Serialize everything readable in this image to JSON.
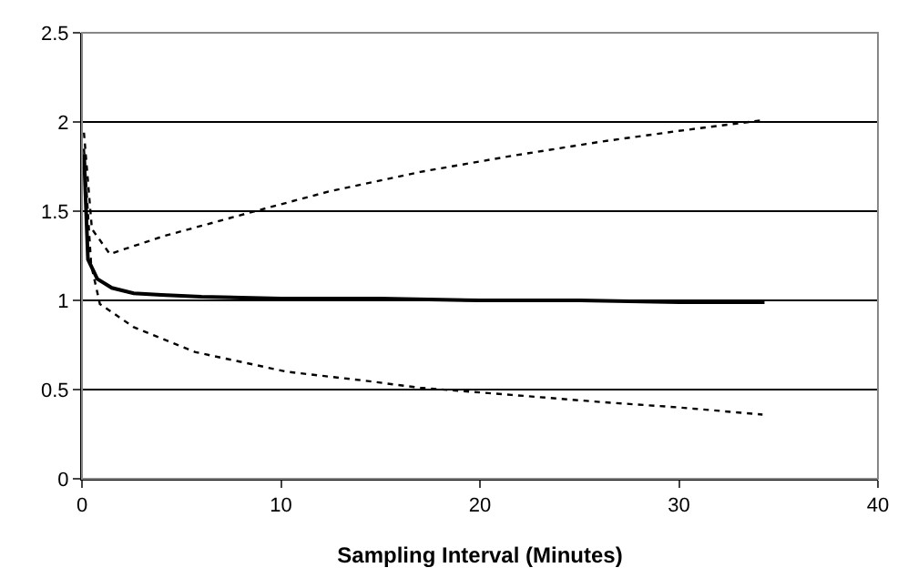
{
  "chart_data": {
    "type": "line",
    "xlabel": "Sampling Interval (Minutes)",
    "xlim": [
      0,
      40
    ],
    "xticks": [
      0,
      10,
      20,
      30,
      40
    ],
    "ylim": [
      0,
      2.5
    ],
    "yticks": [
      0,
      0.5,
      1,
      1.5,
      2,
      2.5
    ],
    "grid": "y",
    "marker": "none",
    "series": [
      {
        "color": "#000000",
        "line_style": "solid",
        "x": [
          0.1,
          0.3,
          0.77,
          1.5,
          2.6,
          4,
          6,
          10,
          15,
          20,
          25,
          30,
          34.3
        ],
        "values": [
          1.82,
          1.23,
          1.12,
          1.07,
          1.04,
          1.03,
          1.02,
          1.01,
          1.01,
          1.0,
          1.0,
          0.99,
          0.99
        ]
      },
      {
        "color": "#000000",
        "line_style": "dotted",
        "x": [
          0.1,
          0.5,
          1.4,
          4.1,
          8.7,
          12.4,
          17,
          21.6,
          26.1,
          30,
          34.2
        ],
        "values": [
          1.94,
          1.4,
          1.26,
          1.36,
          1.5,
          1.61,
          1.72,
          1.81,
          1.89,
          1.95,
          2.01
        ]
      },
      {
        "color": "#000000",
        "line_style": "dotted",
        "x": [
          0.1,
          0.46,
          0.9,
          2.6,
          5.7,
          10.3,
          14.2,
          17,
          21.6,
          26.1,
          30,
          34.2
        ],
        "values": [
          1.85,
          1.2,
          0.98,
          0.85,
          0.71,
          0.6,
          0.55,
          0.51,
          0.47,
          0.43,
          0.4,
          0.36
        ]
      }
    ]
  }
}
